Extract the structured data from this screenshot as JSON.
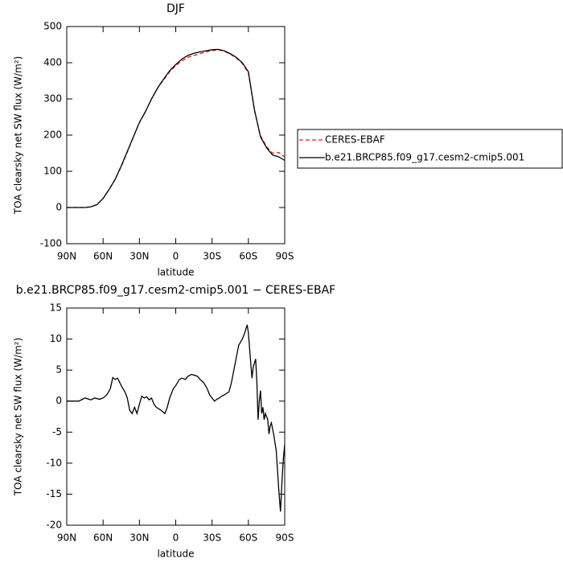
{
  "chart_data": [
    {
      "type": "line",
      "title": "DJF",
      "x_label": "latitude",
      "y_label": "TOA clearsky net SW flux (W/m²)",
      "x": [
        90,
        85,
        80,
        75,
        70,
        65,
        60,
        55,
        50,
        45,
        40,
        35,
        30,
        25,
        20,
        15,
        10,
        5,
        0,
        -5,
        -10,
        -15,
        -20,
        -25,
        -30,
        -35,
        -40,
        -45,
        -50,
        -55,
        -60,
        -65,
        -70,
        -75,
        -80,
        -85,
        -90
      ],
      "series": [
        {
          "name": "CERES-EBAF",
          "color": "#e0201b",
          "dash": true,
          "values": [
            0,
            0,
            0,
            0,
            2,
            8,
            25,
            50,
            78,
            113,
            153,
            195,
            235,
            265,
            300,
            330,
            353,
            375,
            392,
            405,
            415,
            420,
            425,
            430,
            433,
            436,
            432,
            424,
            413,
            398,
            372,
            268,
            198,
            168,
            150,
            152,
            140
          ]
        },
        {
          "name": "b.e21.BRCP85.f09_g17.cesm2-cmip5.001",
          "color": "#000000",
          "dash": false,
          "values": [
            0,
            0,
            0,
            0,
            2,
            8,
            25,
            50,
            78,
            115,
            155,
            195,
            235,
            265,
            300,
            330,
            355,
            378,
            395,
            410,
            420,
            426,
            430,
            433,
            436,
            437,
            433,
            425,
            415,
            400,
            375,
            270,
            195,
            165,
            145,
            140,
            130
          ]
        }
      ],
      "xlim": [
        90,
        -90
      ],
      "xticks": [
        {
          "value": 90,
          "label": "90N"
        },
        {
          "value": 60,
          "label": "60N"
        },
        {
          "value": 30,
          "label": "30N"
        },
        0,
        {
          "value": -30,
          "label": "30S"
        },
        {
          "value": -60,
          "label": "60S"
        },
        {
          "value": -90,
          "label": "90S"
        }
      ],
      "ylim": [
        -100,
        500
      ],
      "yticks": [
        -100,
        0,
        100,
        200,
        300,
        400,
        500
      ],
      "legend": "right"
    },
    {
      "type": "line",
      "title": "b.e21.BRCP85.f09_g17.cesm2-cmip5.001 − CERES-EBAF",
      "x_label": "latitude",
      "y_label": "TOA clearsky net SW flux (W/m²)",
      "x": [
        90,
        80,
        75,
        70,
        67,
        63,
        60,
        57,
        54,
        52,
        50,
        48,
        45,
        42,
        40,
        38,
        36,
        34,
        32,
        30,
        28,
        26,
        24,
        22,
        20,
        18,
        16,
        12,
        9,
        7,
        5,
        2,
        0,
        -3,
        -5,
        -8,
        -10,
        -13,
        -15,
        -18,
        -20,
        -23,
        -26,
        -28,
        -30,
        -32,
        -34,
        -36,
        -38,
        -40,
        -44,
        -46,
        -48,
        -50,
        -52,
        -55,
        -57,
        -59,
        -60,
        -62,
        -63,
        -64,
        -66,
        -67,
        -68,
        -69,
        -70,
        -71,
        -72,
        -73,
        -74,
        -76,
        -77,
        -78,
        -79,
        -80,
        -81,
        -83,
        -85,
        -86.5,
        -88,
        -89,
        -90
      ],
      "values": [
        0,
        0,
        0.5,
        0.2,
        0.5,
        0.3,
        0.5,
        1,
        2,
        3.8,
        3.5,
        3.7,
        2.5,
        1.5,
        0.5,
        -1.5,
        -2,
        -1,
        -2,
        -0.5,
        0.8,
        0.5,
        0.7,
        0.2,
        0.5,
        -0.5,
        -1,
        -1.5,
        -2,
        -1,
        0.5,
        2,
        2.5,
        3.5,
        3.7,
        3.5,
        4,
        4.3,
        4.2,
        4,
        3.5,
        3,
        2,
        1,
        0.5,
        0,
        0.3,
        0.5,
        0.8,
        1,
        1.5,
        3,
        5,
        7,
        9,
        10,
        11,
        12.3,
        11,
        6,
        3.7,
        5.5,
        6.8,
        3,
        -3,
        0,
        1.7,
        -2,
        -1,
        -3,
        -2,
        -3,
        -5.3,
        -4,
        -3.5,
        -4.5,
        -5.5,
        -8,
        -14,
        -17.8,
        -12,
        -9,
        -7
      ],
      "color": "#000000",
      "xlim": [
        90,
        -90
      ],
      "xticks": [
        {
          "value": 90,
          "label": "90N"
        },
        {
          "value": 60,
          "label": "60N"
        },
        {
          "value": 30,
          "label": "30N"
        },
        0,
        {
          "value": -30,
          "label": "30S"
        },
        {
          "value": -60,
          "label": "60S"
        },
        {
          "value": -90,
          "label": "90S"
        }
      ],
      "ylim": [
        -20,
        15
      ],
      "yticks": [
        -20,
        -15,
        -10,
        -5,
        0,
        5,
        10,
        15
      ]
    }
  ]
}
